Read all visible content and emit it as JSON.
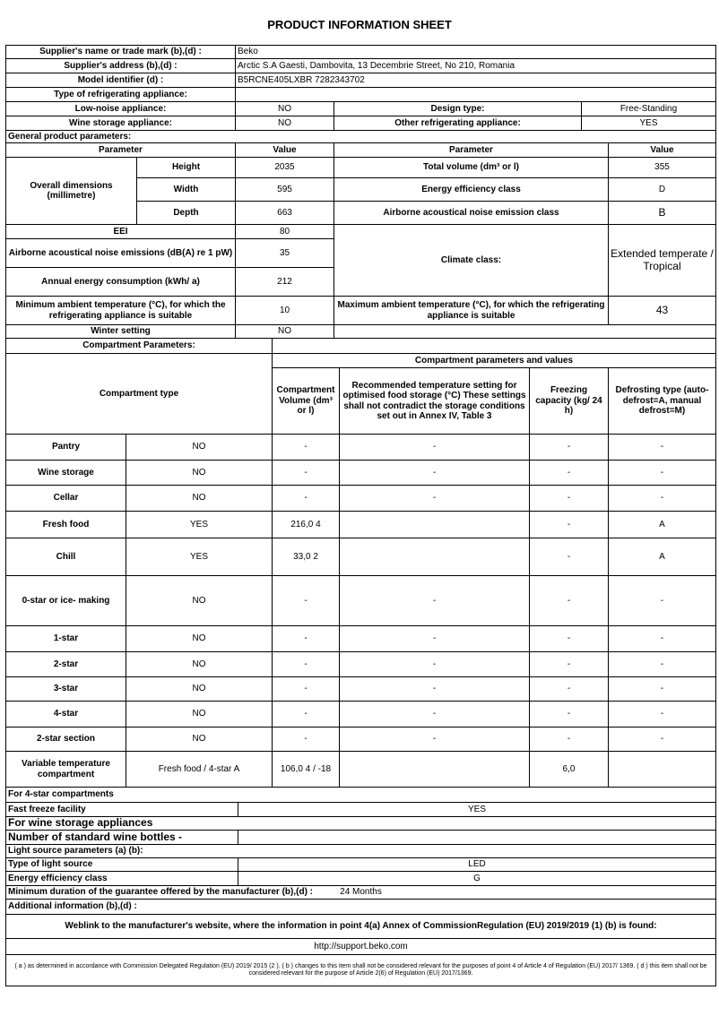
{
  "title": "PRODUCT INFORMATION SHEET",
  "supplier": {
    "name_label": "Supplier's name or trade mark (b),(d) :",
    "name": "Beko",
    "address_label": "Supplier's address (b),(d) :",
    "address": "Arctic S.A  Gaesti, Dambovita, 13 Decembrie Street, No 210, Romania",
    "model_label": "Model identifier (d) :",
    "model": "B5RCNE405LXBR 7282343702",
    "type_label": "Type of refrigerating appliance:"
  },
  "appliance": {
    "low_noise_label": "Low-noise appliance:",
    "low_noise": "NO",
    "design_label": "Design type:",
    "design": "Free-Standing",
    "wine_label": "Wine storage appliance:",
    "wine": "NO",
    "other_label": "Other refrigerating appliance:",
    "other": "YES"
  },
  "general": {
    "section": "General product parameters:",
    "param": "Parameter",
    "value": "Value",
    "dims_label": "Overall dimensions (millimetre)",
    "height_label": "Height",
    "height": "2035",
    "width_label": "Width",
    "width": "595",
    "depth_label": "Depth",
    "depth": "663",
    "total_volume_label": "Total volume (dm³ or l)",
    "total_volume": "355",
    "energy_class_label": "Energy efficiency class",
    "energy_class": "D",
    "noise_class_label": "Airborne acoustical noise emission class",
    "noise_class": "B",
    "eei_label": "EEI",
    "eei": "80",
    "noise_label": "Airborne acoustical noise emissions (dB(A) re 1 pW)",
    "noise": "35",
    "annual_label": "Annual energy consumption (kWh/ a)",
    "annual": "212",
    "climate_label": "Climate class:",
    "climate": "Extended temperate / Tropical",
    "min_amb_label": "Minimum ambient temperature (°C), for which the refrigerating appliance is suitable",
    "min_amb": "10",
    "max_amb_label": "Maximum ambient temperature (°C), for which the refrigerating appliance is suitable",
    "max_amb": "43",
    "winter_label": "Winter setting",
    "winter": "NO"
  },
  "compartments": {
    "section": "Compartment Parameters:",
    "group_header": "Compartment parameters and values",
    "type_header": "Compartment type",
    "vol_header": "Compartment Volume (dm³ or l)",
    "temp_header": "Recommended temperature setting for optimised food storage (°C) These settings shall not contradict the storage conditions set out in Annex IV, Table 3",
    "freeze_header": "Freezing capacity (kg/ 24 h)",
    "defrost_header": "Defrosting type (auto-defrost=A, manual defrost=M)",
    "rows": [
      {
        "name": "Pantry",
        "present": "NO",
        "volume": "-",
        "temp": "-",
        "freeze": "-",
        "defrost": "-"
      },
      {
        "name": "Wine storage",
        "present": "NO",
        "volume": "-",
        "temp": "-",
        "freeze": "-",
        "defrost": "-"
      },
      {
        "name": "Cellar",
        "present": "NO",
        "volume": "-",
        "temp": "-",
        "freeze": "-",
        "defrost": "-"
      },
      {
        "name": "Fresh food",
        "present": "YES",
        "volume": "216,0 4",
        "temp": "",
        "freeze": "-",
        "defrost": "A"
      },
      {
        "name": "Chill",
        "present": "YES",
        "volume": "33,0 2",
        "temp": "",
        "freeze": "-",
        "defrost": "A"
      },
      {
        "name": "0-star or ice- making",
        "present": "NO",
        "volume": "-",
        "temp": "-",
        "freeze": "-",
        "defrost": "-"
      },
      {
        "name": "1-star",
        "present": "NO",
        "volume": "-",
        "temp": "-",
        "freeze": "-",
        "defrost": "-"
      },
      {
        "name": "2-star",
        "present": "NO",
        "volume": "-",
        "temp": "-",
        "freeze": "-",
        "defrost": "-"
      },
      {
        "name": "3-star",
        "present": "NO",
        "volume": "-",
        "temp": "-",
        "freeze": "-",
        "defrost": "-"
      },
      {
        "name": "4-star",
        "present": "NO",
        "volume": "-",
        "temp": "-",
        "freeze": "-",
        "defrost": "-"
      },
      {
        "name": "2-star section",
        "present": "NO",
        "volume": "-",
        "temp": "-",
        "freeze": "-",
        "defrost": "-"
      },
      {
        "name": "Variable temperature compartment",
        "present": "Fresh food / 4-star A",
        "volume": "106,0 4 / -18",
        "temp": "",
        "freeze": "6,0",
        "defrost": ""
      }
    ]
  },
  "four_star": {
    "section": "For 4-star compartments",
    "fast_freeze_label": "Fast freeze facility",
    "fast_freeze": "YES"
  },
  "wine_app": {
    "section": "For wine storage appliances",
    "bottles_label": "Number of standard wine bottles -"
  },
  "light": {
    "section": "Light source parameters (a) (b):",
    "type_label": "Type of light source",
    "type": "LED",
    "class_label": "Energy efficiency class",
    "class": "G"
  },
  "guarantee": {
    "label": "Minimum duration of the guarantee offered by the manufacturer (b),(d) :",
    "value": "24 Months"
  },
  "additional": {
    "label": "Additional information (b),(d) :"
  },
  "weblink": {
    "label": "Weblink to the manufacturer's website, where the information in point 4(a) Annex of CommissionRegulation (EU) 2019/2019 (1) (b) is found:",
    "url": "http://support.beko.com"
  },
  "footnote": "( a ) as determined in accordance with Commission Delegated Regulation (EU) 2019/ 2015 (2 ). ( b ) changes to this item shall not be considered relevant for the purposes of point 4 of Article 4 of Regulation (EU) 2017/ 1369. ( d ) this item shall not be considered relevant for the purpose of Article 2(6) of Regulation (EU) 2017/1369."
}
